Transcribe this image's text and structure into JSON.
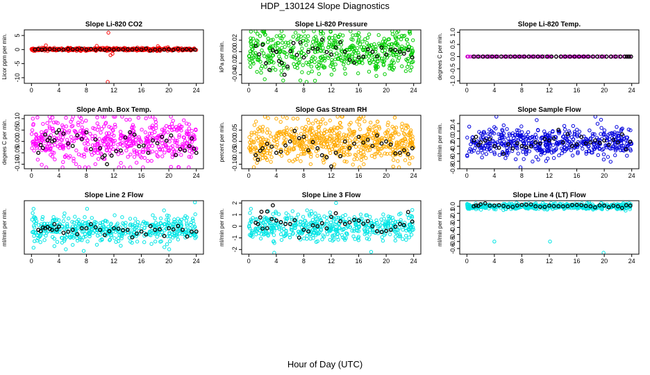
{
  "figure": {
    "title": "HDP_130124  Slope Diagnostics",
    "xlabel": "Hour of Day (UTC)"
  },
  "chart_data": [
    {
      "type": "scatter",
      "title": "Slope Li-820 CO2",
      "ylabel": "Licor ppm per min.",
      "color": "#ff0000",
      "xlim": [
        0,
        24
      ],
      "xticks": [
        0,
        4,
        8,
        12,
        16,
        20,
        24
      ],
      "ylim": [
        -12,
        7
      ],
      "yticks": [
        -10,
        -5,
        0,
        5
      ],
      "outliers": [
        {
          "x": 11.2,
          "y": 6.0
        },
        {
          "x": 11.1,
          "y": -11.5
        },
        {
          "x": 11.5,
          "y": -2.0
        },
        {
          "x": 11.8,
          "y": -1.5
        },
        {
          "x": 2.1,
          "y": 1.5
        },
        {
          "x": 9.5,
          "y": 1.3
        },
        {
          "x": 18.4,
          "y": 1.2
        }
      ],
      "black_points": [
        {
          "x": 0.5,
          "y": 0.0
        },
        {
          "x": 2,
          "y": 0.1
        },
        {
          "x": 4,
          "y": 0.0
        },
        {
          "x": 6,
          "y": 0.1
        },
        {
          "x": 8,
          "y": 0.0
        },
        {
          "x": 10,
          "y": 0.1
        },
        {
          "x": 12,
          "y": 0.0
        },
        {
          "x": 14,
          "y": 0.1
        },
        {
          "x": 16,
          "y": 0.0
        },
        {
          "x": 18,
          "y": 0.0
        },
        {
          "x": 20,
          "y": 0.1
        },
        {
          "x": 22,
          "y": 0.0
        },
        {
          "x": 23.8,
          "y": 0.0
        }
      ]
    },
    {
      "type": "scatter",
      "title": "Slope Li-820 Pressure",
      "ylabel": "kPa per min.",
      "color": "#00cc00",
      "xlim": [
        0,
        24
      ],
      "xticks": [
        0,
        4,
        8,
        12,
        16,
        20,
        24
      ],
      "ylim": [
        -0.055,
        0.038
      ],
      "yticks": [
        -0.04,
        -0.02,
        0.0,
        0.02
      ],
      "outliers": [
        {
          "x": 0.3,
          "y": 0.035
        },
        {
          "x": 5.0,
          "y": -0.05
        },
        {
          "x": 7.5,
          "y": -0.05
        },
        {
          "x": 6.8,
          "y": 0.033
        }
      ],
      "black_points": [
        {
          "x": 1,
          "y": 0.01
        },
        {
          "x": 2.5,
          "y": -0.02
        },
        {
          "x": 4,
          "y": 0.0
        },
        {
          "x": 5.2,
          "y": -0.04
        },
        {
          "x": 6.5,
          "y": 0.015
        },
        {
          "x": 8,
          "y": -0.01
        },
        {
          "x": 10,
          "y": 0.005
        },
        {
          "x": 12,
          "y": -0.005
        },
        {
          "x": 14,
          "y": 0.0
        },
        {
          "x": 16,
          "y": -0.01
        },
        {
          "x": 18,
          "y": 0.0
        },
        {
          "x": 20,
          "y": -0.005
        },
        {
          "x": 22,
          "y": 0.0
        },
        {
          "x": 23.8,
          "y": -0.01
        }
      ]
    },
    {
      "type": "scatter",
      "title": "Slope Li-820 Temp.",
      "ylabel": "degrees C per min.",
      "color": "#cc00cc",
      "xlim": [
        0,
        24
      ],
      "xticks": [
        0,
        4,
        8,
        12,
        16,
        20,
        24
      ],
      "ylim": [
        -1.1,
        1.1
      ],
      "yticks": [
        -1.0,
        -0.5,
        0.0,
        0.5,
        1.0
      ],
      "outliers": [
        {
          "x": 0.2,
          "y": 0.0
        }
      ],
      "black_points": [
        {
          "x": 1,
          "y": 0.0
        },
        {
          "x": 3,
          "y": 0.0
        },
        {
          "x": 5,
          "y": 0.0
        },
        {
          "x": 7,
          "y": 0.0
        },
        {
          "x": 9,
          "y": 0.0
        },
        {
          "x": 11,
          "y": 0.0
        },
        {
          "x": 13,
          "y": 0.0
        },
        {
          "x": 15,
          "y": 0.0
        },
        {
          "x": 17,
          "y": 0.0
        },
        {
          "x": 19,
          "y": 0.0
        },
        {
          "x": 21,
          "y": 0.0
        },
        {
          "x": 23,
          "y": 0.0
        },
        {
          "x": 23.9,
          "y": 0.0
        }
      ]
    },
    {
      "type": "scatter",
      "title": "Slope Amb. Box Temp.",
      "ylabel": "degees C per min.",
      "color": "#ff00ff",
      "xlim": [
        0,
        24
      ],
      "xticks": [
        0,
        4,
        8,
        12,
        16,
        20,
        24
      ],
      "ylim": [
        -0.12,
        0.115
      ],
      "yticks": [
        -0.1,
        -0.05,
        0.0,
        0.05,
        0.1
      ],
      "outliers": [
        {
          "x": 0.2,
          "y": 0.1
        },
        {
          "x": 9.3,
          "y": -0.1
        },
        {
          "x": 13.2,
          "y": 0.11
        },
        {
          "x": 20.3,
          "y": 0.11
        },
        {
          "x": 6.5,
          "y": -0.1
        }
      ],
      "black_points": [
        {
          "x": 1,
          "y": -0.05
        },
        {
          "x": 2,
          "y": 0.03
        },
        {
          "x": 3,
          "y": 0.0
        },
        {
          "x": 4,
          "y": 0.05
        },
        {
          "x": 6,
          "y": -0.02
        },
        {
          "x": 8,
          "y": 0.04
        },
        {
          "x": 10,
          "y": -0.03
        },
        {
          "x": 11,
          "y": -0.1
        },
        {
          "x": 13,
          "y": -0.04
        },
        {
          "x": 15,
          "y": 0.03
        },
        {
          "x": 17,
          "y": -0.05
        },
        {
          "x": 19,
          "y": 0.02
        },
        {
          "x": 21,
          "y": -0.06
        },
        {
          "x": 23,
          "y": -0.02
        },
        {
          "x": 24,
          "y": -0.05
        }
      ]
    },
    {
      "type": "scatter",
      "title": "Slope Gas Stream RH",
      "ylabel": "percent per min.",
      "color": "#ffaa00",
      "xlim": [
        0,
        24
      ],
      "xticks": [
        0,
        4,
        8,
        12,
        16,
        20,
        24
      ],
      "ylim": [
        -0.12,
        0.115
      ],
      "yticks": [
        -0.1,
        -0.05,
        0.0,
        0.05
      ],
      "outliers": [
        {
          "x": 12.3,
          "y": -0.12
        },
        {
          "x": 7.1,
          "y": 0.1
        },
        {
          "x": 16.0,
          "y": 0.1
        },
        {
          "x": 4.0,
          "y": 0.1
        }
      ],
      "black_points": [
        {
          "x": 1,
          "y": -0.06
        },
        {
          "x": 2,
          "y": -0.03
        },
        {
          "x": 4,
          "y": -0.05
        },
        {
          "x": 6,
          "y": 0.0
        },
        {
          "x": 8,
          "y": 0.02
        },
        {
          "x": 10,
          "y": -0.03
        },
        {
          "x": 12,
          "y": -0.11
        },
        {
          "x": 14,
          "y": 0.0
        },
        {
          "x": 16,
          "y": 0.02
        },
        {
          "x": 18,
          "y": -0.02
        },
        {
          "x": 20,
          "y": 0.0
        },
        {
          "x": 22,
          "y": -0.05
        },
        {
          "x": 23.8,
          "y": -0.03
        }
      ]
    },
    {
      "type": "scatter",
      "title": "Slope Sample Flow",
      "ylabel": "ml/min per min.",
      "color": "#0000dd",
      "xlim": [
        0,
        24
      ],
      "xticks": [
        0,
        4,
        8,
        12,
        16,
        20,
        24
      ],
      "ylim": [
        -0.8,
        0.62
      ],
      "yticks": [
        -0.8,
        -0.6,
        -0.4,
        -0.2,
        0.0,
        0.2,
        0.4
      ],
      "outliers": [
        {
          "x": 7.8,
          "y": -0.78
        },
        {
          "x": 4.3,
          "y": 0.62
        },
        {
          "x": 18.7,
          "y": 0.6
        },
        {
          "x": 2.2,
          "y": -0.5
        }
      ],
      "black_points": [
        {
          "x": 1,
          "y": -0.05
        },
        {
          "x": 2,
          "y": -0.1
        },
        {
          "x": 4,
          "y": -0.2
        },
        {
          "x": 6,
          "y": -0.15
        },
        {
          "x": 8,
          "y": -0.2
        },
        {
          "x": 10,
          "y": -0.1
        },
        {
          "x": 12,
          "y": -0.05
        },
        {
          "x": 14,
          "y": -0.1
        },
        {
          "x": 16,
          "y": -0.15
        },
        {
          "x": 18,
          "y": -0.1
        },
        {
          "x": 20,
          "y": -0.05
        },
        {
          "x": 22,
          "y": -0.1
        },
        {
          "x": 23.8,
          "y": -0.08
        }
      ]
    },
    {
      "type": "scatter",
      "title": "Slope Line 2 Flow",
      "ylabel": "ml/min per min.",
      "color": "#00e5e5",
      "xlim": [
        0,
        24
      ],
      "xticks": [
        0,
        4,
        8,
        12,
        16,
        20,
        24
      ],
      "ylim": [
        -0.8,
        0.85
      ],
      "yticks": [],
      "outliers": [
        {
          "x": 23.8,
          "y": 0.8
        },
        {
          "x": 0.3,
          "y": 0.6
        },
        {
          "x": 0.3,
          "y": -0.6
        },
        {
          "x": 5.0,
          "y": -0.65
        },
        {
          "x": 7.6,
          "y": -0.7
        },
        {
          "x": 8.1,
          "y": 0.6
        },
        {
          "x": 19.3,
          "y": 0.55
        }
      ],
      "black_points": [
        {
          "x": 1,
          "y": -0.05
        },
        {
          "x": 2,
          "y": 0.0
        },
        {
          "x": 3,
          "y": -0.05
        },
        {
          "x": 4,
          "y": 0.05
        },
        {
          "x": 6,
          "y": -0.05
        },
        {
          "x": 8,
          "y": 0.0
        },
        {
          "x": 10,
          "y": -0.05
        },
        {
          "x": 12,
          "y": 0.0
        },
        {
          "x": 14,
          "y": -0.05
        },
        {
          "x": 16,
          "y": -0.1
        },
        {
          "x": 18,
          "y": -0.05
        },
        {
          "x": 20,
          "y": 0.0
        },
        {
          "x": 22,
          "y": -0.05
        },
        {
          "x": 24,
          "y": -0.1
        }
      ]
    },
    {
      "type": "scatter",
      "title": "Slope Line 3 Flow",
      "ylabel": "ml/min per min.",
      "color": "#00e5e5",
      "xlim": [
        0,
        24
      ],
      "xticks": [
        0,
        4,
        8,
        12,
        16,
        20,
        24
      ],
      "ylim": [
        -2.4,
        2.2
      ],
      "yticks": [
        -2,
        -1,
        0,
        1,
        2
      ],
      "outliers": [
        {
          "x": 3.7,
          "y": -2.3
        },
        {
          "x": 12.7,
          "y": 2.0
        },
        {
          "x": 17.8,
          "y": -2.2
        },
        {
          "x": 0.3,
          "y": 1.5
        },
        {
          "x": 23.8,
          "y": 1.4
        }
      ],
      "black_points": [
        {
          "x": 3.5,
          "y": 1.8
        },
        {
          "x": 1,
          "y": 0.3
        },
        {
          "x": 2,
          "y": -0.2
        },
        {
          "x": 4,
          "y": 0.5
        },
        {
          "x": 6,
          "y": 0.2
        },
        {
          "x": 8,
          "y": -0.3
        },
        {
          "x": 10,
          "y": 0.0
        },
        {
          "x": 12,
          "y": 0.8
        },
        {
          "x": 14,
          "y": 0.2
        },
        {
          "x": 16,
          "y": 0.5
        },
        {
          "x": 18,
          "y": 0.0
        },
        {
          "x": 20,
          "y": -0.4
        },
        {
          "x": 22,
          "y": 0.2
        },
        {
          "x": 23.8,
          "y": 0.4
        }
      ]
    },
    {
      "type": "scatter",
      "title": "Slope Line 4 (LT) Flow",
      "ylabel": "ml/min per min.",
      "color": "#00e5e5",
      "xlim": [
        0,
        24
      ],
      "xticks": [
        0,
        4,
        8,
        12,
        16,
        20,
        24
      ],
      "ylim": [
        -0.68,
        0.08
      ],
      "yticks": [
        -0.6,
        -0.5,
        -0.4,
        -0.3,
        -0.2,
        -0.1,
        0.0
      ],
      "outliers": [
        {
          "x": 4.0,
          "y": -0.5
        },
        {
          "x": 12.1,
          "y": -0.5
        },
        {
          "x": 19.9,
          "y": -0.66
        }
      ],
      "black_points": [
        {
          "x": 1,
          "y": 0.0
        },
        {
          "x": 2,
          "y": 0.03
        },
        {
          "x": 4,
          "y": 0.01
        },
        {
          "x": 6,
          "y": -0.01
        },
        {
          "x": 8,
          "y": 0.02
        },
        {
          "x": 10,
          "y": 0.0
        },
        {
          "x": 12,
          "y": 0.01
        },
        {
          "x": 14,
          "y": 0.0
        },
        {
          "x": 16,
          "y": 0.02
        },
        {
          "x": 18,
          "y": 0.0
        },
        {
          "x": 20,
          "y": 0.01
        },
        {
          "x": 22,
          "y": 0.0
        },
        {
          "x": 23.8,
          "y": 0.01
        }
      ]
    }
  ]
}
